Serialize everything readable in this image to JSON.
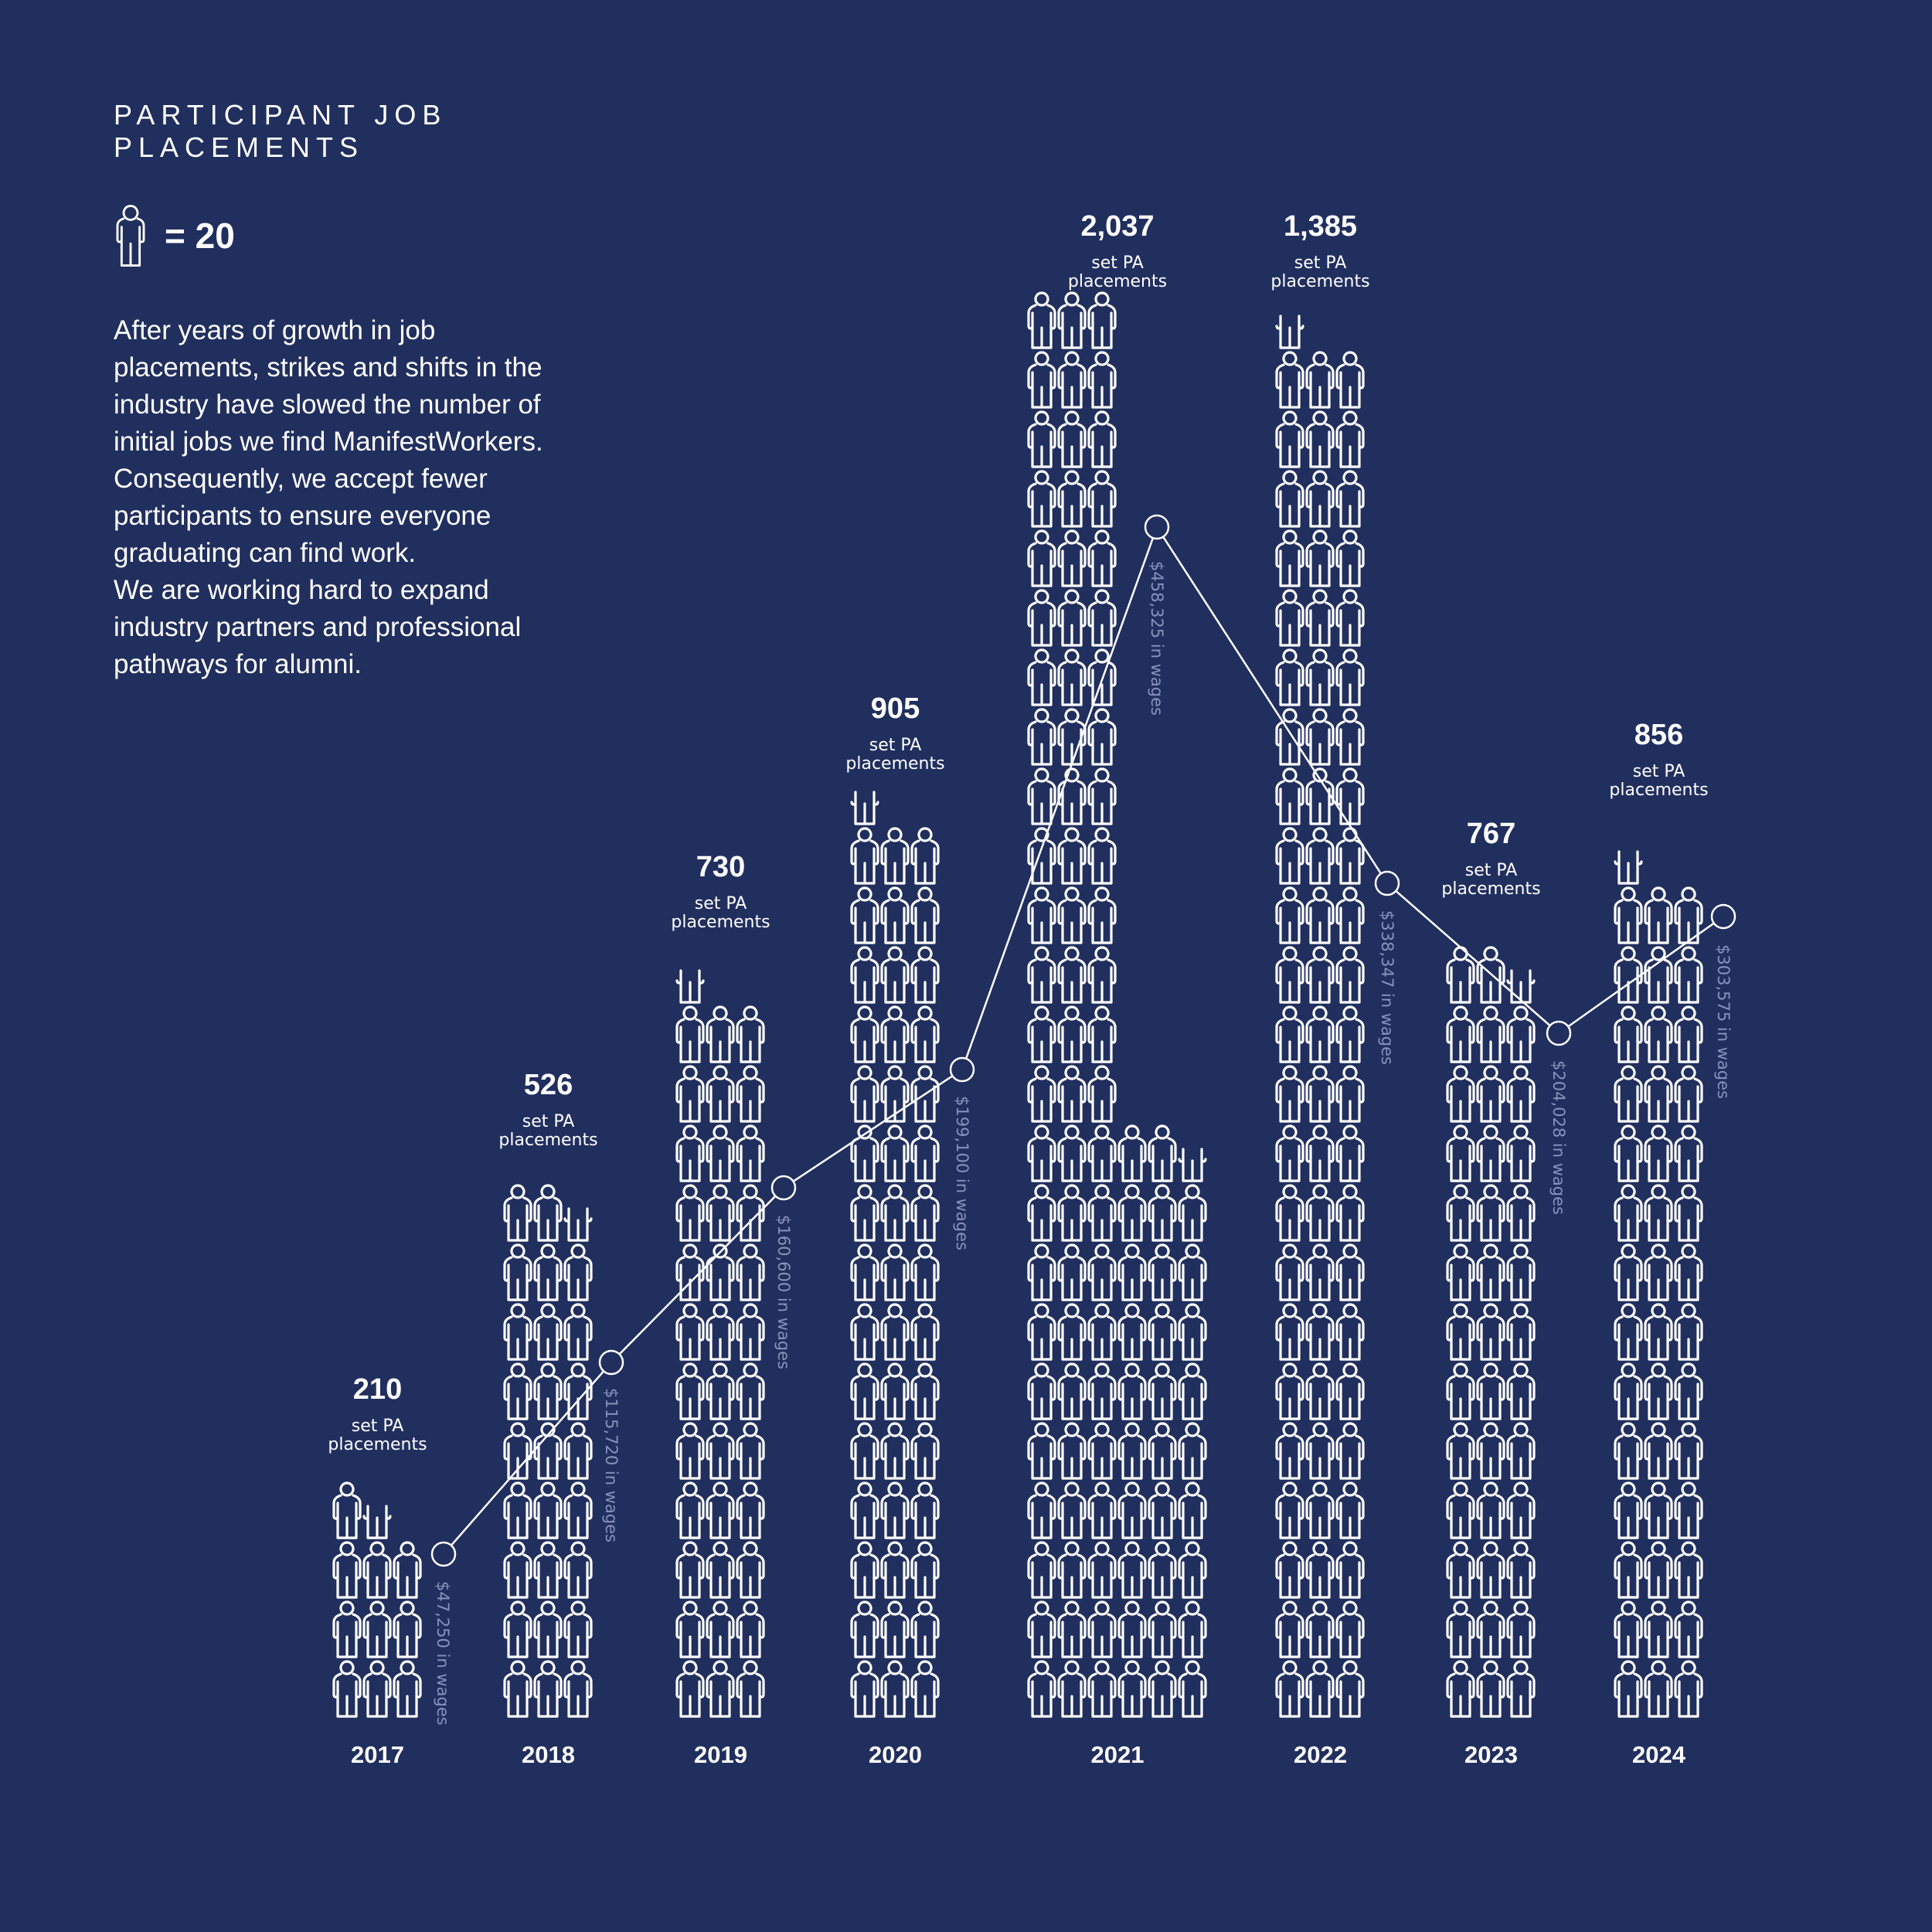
{
  "header": {
    "title": "PARTICIPANT JOB PLACEMENTS",
    "legend_icon": "person-outline-icon",
    "legend_text": "= 20"
  },
  "description": "After years of growth in job\nplacements, strikes and shifts in the\nindustry have slowed the number of\ninitial jobs we find ManifestWorkers.\nConsequently, we accept fewer\nparticipants to ensure everyone\ngraduating can find work.\nWe are working hard to expand\nindustry partners and professional\npathways for alumni.",
  "colors": {
    "background": "#212f5e",
    "foreground": "#ffffff",
    "wage_label": "#8793bd"
  },
  "chart_data": {
    "type": "bar",
    "subtype": "pictogram-with-line-overlay",
    "title": "PARTICIPANT JOB PLACEMENTS",
    "unit_note": "1 person icon = 20 placements",
    "categories": [
      "2017",
      "2018",
      "2019",
      "2020",
      "2021",
      "2022",
      "2023",
      "2024"
    ],
    "series": [
      {
        "name": "set PA placements",
        "type": "bar",
        "values": [
          210,
          526,
          730,
          905,
          2037,
          1385,
          767,
          856
        ],
        "labels": [
          "210",
          "526",
          "730",
          "905",
          "2,037",
          "1,385",
          "767",
          "856"
        ]
      },
      {
        "name": "wages",
        "type": "line",
        "values": [
          47250,
          115720,
          160600,
          199100,
          458325,
          338347,
          204028,
          303575
        ],
        "labels": [
          "$47,250 in wages",
          "$115,720 in wages",
          "$160,600 in wages",
          "$199,100 in wages",
          "$458,325 in wages",
          "$338,347 in wages",
          "$204,028 in wages",
          "$303,575 in wages"
        ]
      }
    ],
    "value_sublabel": "set PA placements",
    "xlabel": "",
    "ylabel": "",
    "grid": false,
    "legend_position": "top-left"
  },
  "columns": [
    {
      "year": "2017",
      "value": "210",
      "sub1": "set PA",
      "sub2": "placements",
      "wage": "$47,250 in wages"
    },
    {
      "year": "2018",
      "value": "526",
      "sub1": "set PA",
      "sub2": "placements",
      "wage": "$115,720 in wages"
    },
    {
      "year": "2019",
      "value": "730",
      "sub1": "set PA",
      "sub2": "placements",
      "wage": "$160,600 in wages"
    },
    {
      "year": "2020",
      "value": "905",
      "sub1": "set PA",
      "sub2": "placements",
      "wage": "$199,100 in wages"
    },
    {
      "year": "2021",
      "value": "2,037",
      "sub1": "set PA",
      "sub2": "placements",
      "wage": "$458,325 in wages"
    },
    {
      "year": "2022",
      "value": "1,385",
      "sub1": "set PA",
      "sub2": "placements",
      "wage": "$338,347 in wages"
    },
    {
      "year": "2023",
      "value": "767",
      "sub1": "set PA",
      "sub2": "placements",
      "wage": "$204,028 in wages"
    },
    {
      "year": "2024",
      "value": "856",
      "sub1": "set PA",
      "sub2": "placements",
      "wage": "$303,575 in wages"
    }
  ]
}
